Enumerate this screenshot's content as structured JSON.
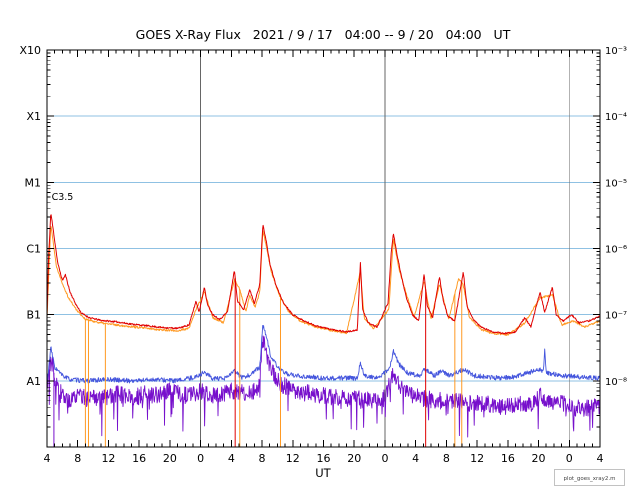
{
  "chart_data": {
    "type": "line",
    "title": "GOES X-Ray Flux   2021 / 9 / 17   04:00 -- 9 / 20   04:00   UT",
    "xlabel": "UT",
    "credit": "plot_goes_xray2.m",
    "x_range": [
      4,
      76
    ],
    "x_tick_step": 4,
    "x_tick_labels": [
      "4",
      "8",
      "12",
      "16",
      "20",
      "0",
      "4",
      "8",
      "12",
      "16",
      "20",
      "0",
      "4",
      "8",
      "12",
      "16",
      "20",
      "0",
      "4"
    ],
    "log_range": [
      -9,
      -3
    ],
    "y_left_labels": [
      {
        "exp": -3,
        "label": "X10"
      },
      {
        "exp": -4,
        "label": "X1"
      },
      {
        "exp": -5,
        "label": "M1"
      },
      {
        "exp": -6,
        "label": "C1"
      },
      {
        "exp": -7,
        "label": "B1"
      },
      {
        "exp": -8,
        "label": "A1"
      }
    ],
    "y_right_labels": [
      {
        "exp": -3,
        "label": "10⁻³"
      },
      {
        "exp": -4,
        "label": "10⁻⁴"
      },
      {
        "exp": -5,
        "label": "10⁻⁵"
      },
      {
        "exp": -6,
        "label": "10⁻⁶"
      },
      {
        "exp": -7,
        "label": "10⁻⁷"
      },
      {
        "exp": -8,
        "label": "10⁻⁸"
      }
    ],
    "h_gridlines": [
      -4,
      -5,
      -6,
      -7,
      -8
    ],
    "v_gridlines": [
      24,
      48,
      72
    ],
    "annotations": [
      {
        "text": "C3.5",
        "hour": 4.6,
        "flux": 5.4e-06
      }
    ],
    "sample_step": 0.06,
    "colors": {
      "grid_h": "#8fc1e3",
      "grid_v": "#666666",
      "axis": "#000000",
      "long_primary": "#e00000",
      "long_secondary": "#ff9922",
      "short_primary": "#4455dd",
      "short_secondary": "#7710cc"
    },
    "series": [
      {
        "name": "xray-short-secondary",
        "color": "#7710cc",
        "width": 0.9,
        "seed": 44,
        "noise_dex": 0.13,
        "spike_down": {
          "prob": 0.06,
          "dex": 0.5
        },
        "dropouts": [
          4.9
        ],
        "points": [
          [
            4,
            9e-09
          ],
          [
            4.5,
            2.2e-08
          ],
          [
            5.2,
            9e-09
          ],
          [
            6,
            6e-09
          ],
          [
            7,
            5e-09
          ],
          [
            8,
            6.5e-09
          ],
          [
            9,
            5.5e-09
          ],
          [
            10,
            6e-09
          ],
          [
            11,
            5e-09
          ],
          [
            12,
            6e-09
          ],
          [
            13,
            6.5e-09
          ],
          [
            14,
            6e-09
          ],
          [
            15,
            5.5e-09
          ],
          [
            16,
            6e-09
          ],
          [
            17,
            6.5e-09
          ],
          [
            18,
            6e-09
          ],
          [
            19,
            6.5e-09
          ],
          [
            20,
            7e-09
          ],
          [
            21,
            6.5e-09
          ],
          [
            22,
            6e-09
          ],
          [
            23,
            6.5e-09
          ],
          [
            24,
            7e-09
          ],
          [
            25,
            6.5e-09
          ],
          [
            26,
            6e-09
          ],
          [
            27,
            6.5e-09
          ],
          [
            28,
            7e-09
          ],
          [
            29,
            6.5e-09
          ],
          [
            30,
            6.5e-09
          ],
          [
            31,
            7e-09
          ],
          [
            31.7,
            9e-09
          ],
          [
            32.1,
            4.5e-08
          ],
          [
            32.6,
            2.6e-08
          ],
          [
            33.2,
            1.4e-08
          ],
          [
            34.5,
            9e-09
          ],
          [
            36,
            7e-09
          ],
          [
            38,
            6.5e-09
          ],
          [
            40,
            6e-09
          ],
          [
            42,
            5.5e-09
          ],
          [
            44,
            5.5e-09
          ],
          [
            46,
            5e-09
          ],
          [
            48,
            5.5e-09
          ],
          [
            49.1,
            1.4e-08
          ],
          [
            50,
            8e-09
          ],
          [
            51.5,
            6e-09
          ],
          [
            53,
            5.5e-09
          ],
          [
            55,
            5e-09
          ],
          [
            57,
            5e-09
          ],
          [
            59,
            4.5e-09
          ],
          [
            61,
            4.5e-09
          ],
          [
            63,
            4e-09
          ],
          [
            65,
            4.5e-09
          ],
          [
            67,
            4.5e-09
          ],
          [
            68.3,
            6e-09
          ],
          [
            69.5,
            5e-09
          ],
          [
            71,
            4.5e-09
          ],
          [
            72.5,
            4e-09
          ],
          [
            74,
            3.8e-09
          ],
          [
            76,
            4.2e-09
          ]
        ]
      },
      {
        "name": "xray-short-primary",
        "color": "#4455dd",
        "width": 0.9,
        "seed": 33,
        "noise_dex": 0.035,
        "dropouts": [],
        "points": [
          [
            4,
            9e-09
          ],
          [
            4.5,
            3.2e-08
          ],
          [
            5,
            1.6e-08
          ],
          [
            6,
            1.2e-08
          ],
          [
            7,
            1.05e-08
          ],
          [
            9,
            1e-08
          ],
          [
            12,
            1.05e-08
          ],
          [
            15,
            1e-08
          ],
          [
            18,
            1.05e-08
          ],
          [
            21,
            1e-08
          ],
          [
            23.4,
            1.15e-08
          ],
          [
            24.5,
            1.35e-08
          ],
          [
            25.5,
            1.1e-08
          ],
          [
            27,
            1.05e-08
          ],
          [
            28.4,
            1.4e-08
          ],
          [
            29.5,
            1.1e-08
          ],
          [
            30.5,
            1.25e-08
          ],
          [
            31.7,
            1.6e-08
          ],
          [
            32.1,
            7e-08
          ],
          [
            32.6,
            4.5e-08
          ],
          [
            33.2,
            2.2e-08
          ],
          [
            34.5,
            1.4e-08
          ],
          [
            36,
            1.2e-08
          ],
          [
            38,
            1.15e-08
          ],
          [
            40,
            1.1e-08
          ],
          [
            42,
            1.1e-08
          ],
          [
            44.4,
            1.1e-08
          ],
          [
            44.8,
            1.9e-08
          ],
          [
            45.3,
            1.2e-08
          ],
          [
            47,
            1.1e-08
          ],
          [
            48.6,
            1.5e-08
          ],
          [
            49.1,
            2.8e-08
          ],
          [
            49.8,
            1.8e-08
          ],
          [
            51,
            1.3e-08
          ],
          [
            52.5,
            1.2e-08
          ],
          [
            53.1,
            1.5e-08
          ],
          [
            54.5,
            1.2e-08
          ],
          [
            55.3,
            1.4e-08
          ],
          [
            56.5,
            1.2e-08
          ],
          [
            58.2,
            1.5e-08
          ],
          [
            59.5,
            1.2e-08
          ],
          [
            61,
            1.15e-08
          ],
          [
            63,
            1.1e-08
          ],
          [
            65,
            1.15e-08
          ],
          [
            66.3,
            1.3e-08
          ],
          [
            68.3,
            1.5e-08
          ],
          [
            68.6,
            1.3e-08
          ],
          [
            68.8,
            2.8e-08
          ],
          [
            69,
            1.3e-08
          ],
          [
            69.5,
            1.3e-08
          ],
          [
            71,
            1.2e-08
          ],
          [
            73,
            1.15e-08
          ],
          [
            75,
            1.1e-08
          ],
          [
            76,
            1.1e-08
          ]
        ]
      },
      {
        "name": "xray-long-secondary",
        "color": "#ff9922",
        "width": 1.0,
        "seed": 22,
        "noise_dex": 0.015,
        "dropouts": [
          9.0,
          9.4,
          11.6,
          29.1,
          34.4,
          57.1,
          58.0
        ],
        "points": [
          [
            4,
            9e-08
          ],
          [
            4.5,
            2.4e-06
          ],
          [
            5.2,
            5.5e-07
          ],
          [
            6,
            3e-07
          ],
          [
            6.8,
            1.8e-07
          ],
          [
            7.8,
            1.2e-07
          ],
          [
            9,
            8.5e-08
          ],
          [
            11,
            7.5e-08
          ],
          [
            13,
            7e-08
          ],
          [
            15,
            6.6e-08
          ],
          [
            17,
            6.2e-08
          ],
          [
            19,
            5.9e-08
          ],
          [
            21,
            5.7e-08
          ],
          [
            22.5,
            6.2e-08
          ],
          [
            23.4,
            1.2e-07
          ],
          [
            24.5,
            2.2e-07
          ],
          [
            25.6,
            9e-08
          ],
          [
            27,
            7.5e-08
          ],
          [
            28.4,
            3.4e-07
          ],
          [
            29.1,
            2.4e-07
          ],
          [
            29.9,
            1.1e-07
          ],
          [
            30.4,
            2e-07
          ],
          [
            31.1,
            1.3e-07
          ],
          [
            31.7,
            2.2e-07
          ],
          [
            32.1,
            1.9e-06
          ],
          [
            32.6,
            1e-06
          ],
          [
            33.2,
            4.5e-07
          ],
          [
            34.2,
            2e-07
          ],
          [
            35.5,
            1.1e-07
          ],
          [
            37,
            8e-08
          ],
          [
            39,
            6.5e-08
          ],
          [
            41,
            5.8e-08
          ],
          [
            43,
            5.2e-08
          ],
          [
            44.8,
            4.5e-07
          ],
          [
            45.3,
            9e-08
          ],
          [
            46.5,
            6.2e-08
          ],
          [
            48.5,
            1.2e-07
          ],
          [
            49.1,
            1.4e-06
          ],
          [
            49.8,
            5e-07
          ],
          [
            50.8,
            2e-07
          ],
          [
            51.8,
            9e-08
          ],
          [
            53.1,
            3.2e-07
          ],
          [
            54,
            8.5e-08
          ],
          [
            55.1,
            2.9e-07
          ],
          [
            56.3,
            8.5e-08
          ],
          [
            57.6,
            3.6e-07
          ],
          [
            58.2,
            2.8e-07
          ],
          [
            59,
            9e-08
          ],
          [
            60.5,
            6e-08
          ],
          [
            62,
            5.2e-08
          ],
          [
            64,
            5e-08
          ],
          [
            66.2,
            7.5e-08
          ],
          [
            68.2,
            1.8e-07
          ],
          [
            69.8,
            2e-07
          ],
          [
            71,
            7e-08
          ],
          [
            72.5,
            8e-08
          ],
          [
            74,
            6.5e-08
          ],
          [
            76,
            8e-08
          ]
        ]
      },
      {
        "name": "xray-long-primary",
        "color": "#e00000",
        "width": 1.0,
        "seed": 11,
        "noise_dex": 0.012,
        "dropouts": [
          28.5,
          53.3
        ],
        "points": [
          [
            4,
            1e-07
          ],
          [
            4.2,
            7e-07
          ],
          [
            4.5,
            3.5e-06
          ],
          [
            4.9,
            1.6e-06
          ],
          [
            5.4,
            6e-07
          ],
          [
            6.0,
            3.3e-07
          ],
          [
            6.4,
            4e-07
          ],
          [
            7.0,
            2.2e-07
          ],
          [
            7.8,
            1.4e-07
          ],
          [
            8.5,
            1.05e-07
          ],
          [
            9.5,
            9e-08
          ],
          [
            11,
            8.2e-08
          ],
          [
            13,
            7.8e-08
          ],
          [
            15,
            7.2e-08
          ],
          [
            17,
            6.8e-08
          ],
          [
            19,
            6.4e-08
          ],
          [
            21,
            6.2e-08
          ],
          [
            22.5,
            7e-08
          ],
          [
            23.4,
            1.6e-07
          ],
          [
            23.8,
            1.1e-07
          ],
          [
            24.5,
            2.6e-07
          ],
          [
            24.9,
            1.4e-07
          ],
          [
            25.6,
            1e-07
          ],
          [
            26.5,
            8.5e-08
          ],
          [
            27.5,
            1.1e-07
          ],
          [
            28.4,
            4.7e-07
          ],
          [
            28.8,
            1.6e-07
          ],
          [
            29.6,
            1.2e-07
          ],
          [
            30.4,
            2.4e-07
          ],
          [
            31.0,
            1.5e-07
          ],
          [
            31.7,
            2.8e-07
          ],
          [
            32.1,
            2.3e-06
          ],
          [
            32.5,
            1.4e-06
          ],
          [
            33.0,
            6e-07
          ],
          [
            33.8,
            2.8e-07
          ],
          [
            34.8,
            1.5e-07
          ],
          [
            36,
            1e-07
          ],
          [
            37.5,
            8e-08
          ],
          [
            39,
            6.8e-08
          ],
          [
            41,
            6e-08
          ],
          [
            43,
            5.5e-08
          ],
          [
            44.4,
            5.8e-08
          ],
          [
            44.8,
            6.2e-07
          ],
          [
            45.1,
            1.2e-07
          ],
          [
            45.8,
            7.5e-08
          ],
          [
            47,
            6.5e-08
          ],
          [
            48.4,
            1.5e-07
          ],
          [
            48.8,
            8e-07
          ],
          [
            49.1,
            1.7e-06
          ],
          [
            49.5,
            9e-07
          ],
          [
            50.1,
            4e-07
          ],
          [
            50.8,
            1.8e-07
          ],
          [
            51.6,
            1e-07
          ],
          [
            52.4,
            8e-08
          ],
          [
            53.1,
            4.2e-07
          ],
          [
            53.5,
            1.4e-07
          ],
          [
            54.2,
            9e-08
          ],
          [
            55.1,
            3.7e-07
          ],
          [
            55.6,
            1.6e-07
          ],
          [
            56.2,
            9.5e-08
          ],
          [
            57.1,
            8e-08
          ],
          [
            58.2,
            4.4e-07
          ],
          [
            58.7,
            1.3e-07
          ],
          [
            59.5,
            8.5e-08
          ],
          [
            60.5,
            6.5e-08
          ],
          [
            62,
            5.5e-08
          ],
          [
            63.5,
            5.2e-08
          ],
          [
            65,
            5.5e-08
          ],
          [
            66.2,
            9e-08
          ],
          [
            67,
            6.5e-08
          ],
          [
            68.2,
            2.2e-07
          ],
          [
            68.8,
            1.1e-07
          ],
          [
            69.8,
            2.6e-07
          ],
          [
            70.3,
            1e-07
          ],
          [
            71.2,
            8e-08
          ],
          [
            72.3,
            1e-07
          ],
          [
            73.3,
            7.5e-08
          ],
          [
            74.5,
            8e-08
          ],
          [
            76,
            9.5e-08
          ]
        ]
      }
    ]
  }
}
